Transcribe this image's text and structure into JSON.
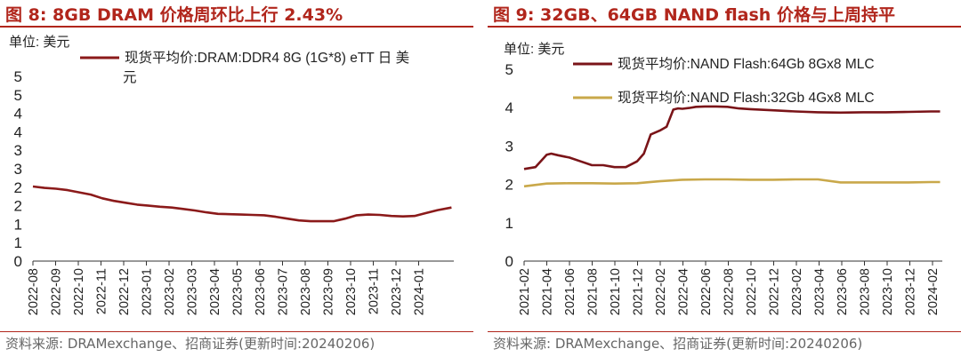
{
  "left": {
    "title": "图 8:  8GB DRAM 价格周环比上行 2.43%",
    "source": "资料来源:  DRAMexchange、招商证券(更新时间:20240206)",
    "chart_data": {
      "type": "line",
      "unit_label": "单位:  美元",
      "ylim": [
        0,
        5
      ],
      "yticks": [
        "0",
        "1",
        "1",
        "2",
        "2",
        "3",
        "3",
        "4",
        "4",
        "5",
        "5"
      ],
      "ytick_values": [
        0,
        0.5,
        1,
        1.5,
        2,
        2.5,
        3,
        3.5,
        4,
        4.5,
        5
      ],
      "x_range": [
        0,
        18.2
      ],
      "categories": [
        "2022-08",
        "2022-09",
        "2022-10",
        "2022-11",
        "2022-12",
        "2023-01",
        "2023-02",
        "2023-03",
        "2023-04",
        "2023-05",
        "2023-06",
        "2023-07",
        "2023-08",
        "2023-09",
        "2023-10",
        "2023-11",
        "2023-12",
        "2024-01"
      ],
      "series": [
        {
          "name": "现货平均价:DRAM:DDR4 8G (1G*8) eTT 日 美元",
          "color": "#8b1a1a",
          "x": [
            0,
            0.5,
            1,
            1.5,
            2,
            2.5,
            3,
            3.5,
            4,
            4.5,
            5,
            5.5,
            6,
            6.5,
            7,
            7.5,
            8,
            8.5,
            9,
            9.5,
            10,
            10.5,
            11,
            11.5,
            12,
            12.5,
            13,
            13.5,
            14,
            14.5,
            15,
            15.5,
            16,
            16.5,
            17,
            17.5,
            18.1
          ],
          "values": [
            2.02,
            1.98,
            1.96,
            1.92,
            1.86,
            1.8,
            1.7,
            1.63,
            1.58,
            1.53,
            1.5,
            1.47,
            1.45,
            1.41,
            1.37,
            1.32,
            1.28,
            1.27,
            1.26,
            1.25,
            1.24,
            1.2,
            1.15,
            1.1,
            1.08,
            1.08,
            1.08,
            1.15,
            1.24,
            1.26,
            1.25,
            1.22,
            1.21,
            1.22,
            1.3,
            1.38,
            1.45
          ]
        }
      ]
    }
  },
  "right": {
    "title": "图 9:  32GB、64GB NAND flash 价格与上周持平",
    "source": "资料来源:  DRAMexchange、招商证券(更新时间:20240206)",
    "chart_data": {
      "type": "line",
      "unit_label": "单位:  美元",
      "ylim": [
        0,
        5
      ],
      "yticks": [
        "0",
        "1",
        "2",
        "3",
        "4",
        "5"
      ],
      "ytick_values": [
        0,
        1,
        2,
        3,
        4,
        5
      ],
      "x_range": [
        0,
        18.5
      ],
      "categories": [
        "2021-02",
        "2021-04",
        "2021-06",
        "2021-08",
        "2021-10",
        "2021-12",
        "2022-02",
        "2022-04",
        "2022-06",
        "2022-08",
        "2022-10",
        "2022-12",
        "2023-02",
        "2023-04",
        "2023-06",
        "2023-08",
        "2023-10",
        "2023-12",
        "2024-02"
      ],
      "series": [
        {
          "name": "现货平均价:NAND Flash:64Gb 8Gx8 MLC",
          "color": "#7a1418",
          "x": [
            0,
            0.5,
            1,
            1.2,
            1.5,
            2,
            2.5,
            3,
            3.5,
            4,
            4.5,
            5,
            5.3,
            5.6,
            6,
            6.3,
            6.6,
            6.8,
            7,
            7.3,
            7.6,
            8,
            8.5,
            9,
            9.5,
            10,
            11,
            12,
            13,
            14,
            15,
            16,
            17,
            18,
            18.4
          ],
          "values": [
            2.4,
            2.45,
            2.77,
            2.8,
            2.76,
            2.7,
            2.6,
            2.5,
            2.5,
            2.45,
            2.45,
            2.6,
            2.8,
            3.3,
            3.4,
            3.5,
            3.95,
            3.98,
            3.97,
            3.99,
            4.02,
            4.03,
            4.03,
            4.02,
            3.98,
            3.96,
            3.93,
            3.9,
            3.88,
            3.87,
            3.88,
            3.88,
            3.89,
            3.9,
            3.9
          ]
        },
        {
          "name": "现货平均价:NAND Flash:32Gb 4Gx8 MLC",
          "color": "#c9a84a",
          "x": [
            0,
            1,
            2,
            3,
            4,
            5,
            6,
            7,
            8,
            9,
            10,
            11,
            12,
            13,
            14,
            15,
            16,
            17,
            18,
            18.4
          ],
          "values": [
            1.95,
            2.02,
            2.03,
            2.03,
            2.02,
            2.03,
            2.08,
            2.12,
            2.13,
            2.13,
            2.12,
            2.12,
            2.13,
            2.13,
            2.05,
            2.05,
            2.05,
            2.05,
            2.06,
            2.06
          ]
        }
      ]
    }
  }
}
